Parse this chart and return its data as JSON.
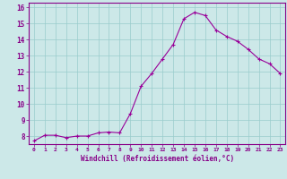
{
  "x": [
    0,
    1,
    2,
    3,
    4,
    5,
    6,
    7,
    8,
    9,
    10,
    11,
    12,
    13,
    14,
    15,
    16,
    17,
    18,
    19,
    20,
    21,
    22,
    23
  ],
  "y": [
    7.7,
    8.05,
    8.05,
    7.9,
    8.0,
    8.0,
    8.2,
    8.25,
    8.2,
    9.4,
    11.1,
    11.9,
    12.8,
    13.7,
    15.3,
    15.7,
    15.5,
    14.6,
    14.2,
    13.9,
    13.4,
    12.8,
    12.5,
    11.9
  ],
  "line_color": "#990099",
  "marker": "+",
  "bg_color": "#cce8e8",
  "grid_color": "#99cccc",
  "xlabel": "Windchill (Refroidissement éolien,°C)",
  "ylim": [
    7.5,
    16.3
  ],
  "xlim": [
    -0.5,
    23.5
  ],
  "yticks": [
    8,
    9,
    10,
    11,
    12,
    13,
    14,
    15,
    16
  ],
  "xticks": [
    0,
    1,
    2,
    3,
    4,
    5,
    6,
    7,
    8,
    9,
    10,
    11,
    12,
    13,
    14,
    15,
    16,
    17,
    18,
    19,
    20,
    21,
    22,
    23
  ],
  "tick_color": "#880088",
  "label_color": "#880088",
  "spine_color": "#880088"
}
